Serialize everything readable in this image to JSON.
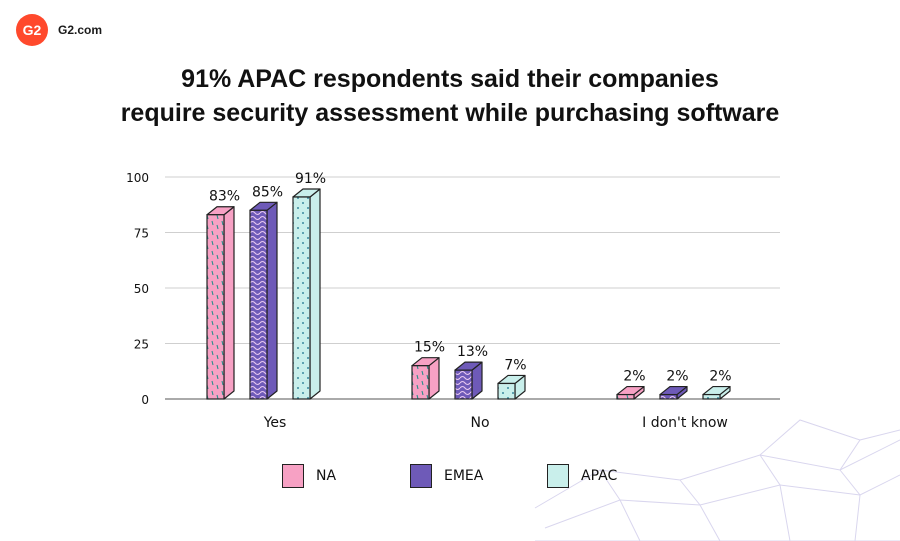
{
  "brand": {
    "name": "G2.com",
    "logo_text": "G2",
    "logo_color": "#ff492c"
  },
  "title_lines": [
    "91% APAC respondents said their companies",
    "require security assessment while purchasing software"
  ],
  "chart_data": {
    "type": "bar",
    "categories": [
      "Yes",
      "No",
      "I don't know"
    ],
    "series": [
      {
        "name": "NA",
        "values": [
          83,
          15,
          2
        ],
        "labels": [
          "83%",
          "15%",
          "2%"
        ],
        "color": "#f7a1c4",
        "pattern": "dashes"
      },
      {
        "name": "EMEA",
        "values": [
          85,
          13,
          2
        ],
        "labels": [
          "85%",
          "13%",
          "2%"
        ],
        "color": "#6e5ab8",
        "pattern": "waves"
      },
      {
        "name": "APAC",
        "values": [
          91,
          7,
          2
        ],
        "labels": [
          "91%",
          "7%",
          "2%"
        ],
        "color": "#c9efeb",
        "pattern": "dots"
      }
    ],
    "ylim": [
      0,
      100
    ],
    "yticks": [
      "0",
      "25",
      "50",
      "75",
      "100"
    ],
    "grid": true,
    "legend_position": "bottom"
  }
}
